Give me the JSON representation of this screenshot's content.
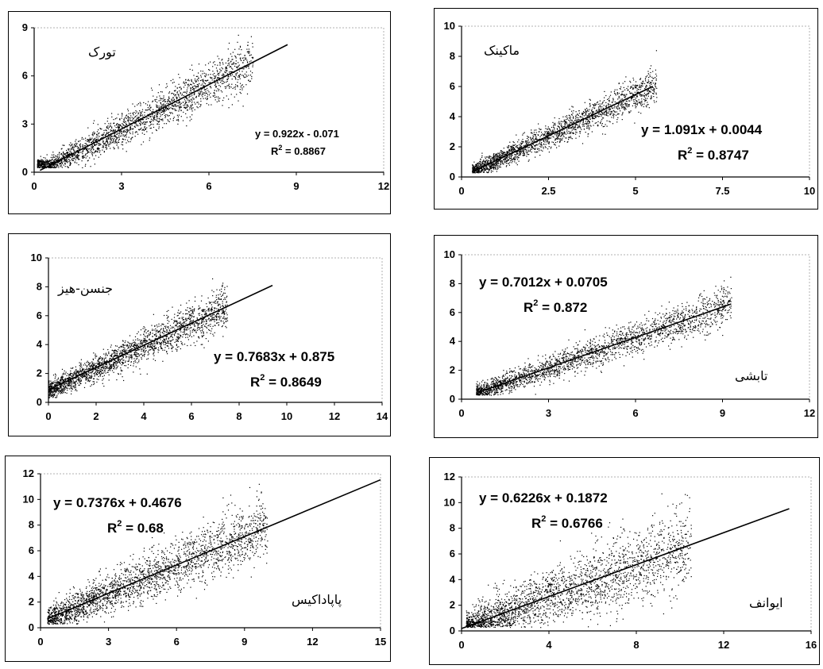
{
  "chart_data": [
    {
      "type": "scatter",
      "title": "تورک",
      "xlim": [
        0,
        12
      ],
      "ylim": [
        0,
        9
      ],
      "xticks": [
        0,
        3,
        6,
        9,
        12
      ],
      "yticks": [
        0,
        3,
        6,
        9
      ],
      "trendline": {
        "slope": 0.922,
        "intercept": -0.071,
        "x_range": [
          0.2,
          8.7
        ]
      },
      "equation": "y = 0.922x - 0.071",
      "r2_prefix": "R",
      "r2_sup": "2",
      "r2_value": "= 0.8867",
      "points": {
        "x_range": [
          0.1,
          7.5
        ],
        "noise": 0.55,
        "count": 2200
      }
    },
    {
      "type": "scatter",
      "title": "ماکینک",
      "xlim": [
        0,
        10
      ],
      "ylim": [
        0,
        10
      ],
      "xticks": [
        0,
        2.5,
        5,
        7.5,
        10
      ],
      "yticks": [
        0,
        2,
        4,
        6,
        8,
        10
      ],
      "trendline": {
        "slope": 1.091,
        "intercept": 0.0044,
        "x_range": [
          0.3,
          5.5
        ]
      },
      "equation": "y = 1.091x + 0.0044",
      "r2_prefix": "R",
      "r2_sup": "2",
      "r2_value": "= 0.8747",
      "points": {
        "x_range": [
          0.3,
          5.6
        ],
        "noise": 0.45,
        "count": 2000
      }
    },
    {
      "type": "scatter",
      "title": "جنسن-هیز",
      "xlim": [
        0,
        14
      ],
      "ylim": [
        0,
        10
      ],
      "xticks": [
        0,
        2,
        4,
        6,
        8,
        10,
        12,
        14
      ],
      "yticks": [
        0,
        2,
        4,
        6,
        8,
        10
      ],
      "trendline": {
        "slope": 0.7683,
        "intercept": 0.875,
        "x_range": [
          0,
          9.4
        ]
      },
      "equation": "y = 0.7683x + 0.875",
      "r2_prefix": "R",
      "r2_sup": "2",
      "r2_value": "= 0.8649",
      "points": {
        "x_range": [
          0,
          7.5
        ],
        "noise": 0.55,
        "count": 2200
      }
    },
    {
      "type": "scatter",
      "title": "تابشی",
      "xlim": [
        0,
        12
      ],
      "ylim": [
        0,
        10
      ],
      "xticks": [
        0,
        3,
        6,
        9,
        12
      ],
      "yticks": [
        0,
        2,
        4,
        6,
        8,
        10
      ],
      "trendline": {
        "slope": 0.7012,
        "intercept": 0.0705,
        "x_range": [
          0.6,
          9.3
        ]
      },
      "equation": "y = 0.7012x + 0.0705",
      "r2_prefix": "R",
      "r2_sup": "2",
      "r2_value": "= 0.872",
      "points": {
        "x_range": [
          0.5,
          9.3
        ],
        "noise": 0.5,
        "count": 2200
      }
    },
    {
      "type": "scatter",
      "title": "پاپاداکیس",
      "xlim": [
        0,
        15
      ],
      "ylim": [
        0,
        12
      ],
      "xticks": [
        0,
        3,
        6,
        9,
        12,
        15
      ],
      "yticks": [
        0,
        2,
        4,
        6,
        8,
        10,
        12
      ],
      "trendline": {
        "slope": 0.7376,
        "intercept": 0.4676,
        "x_range": [
          0.3,
          15
        ]
      },
      "equation": "y = 0.7376x + 0.4676",
      "r2_prefix": "R",
      "r2_sup": "2",
      "r2_value": "= 0.68",
      "points": {
        "x_range": [
          0.3,
          10
        ],
        "noise": 0.9,
        "count": 2400
      }
    },
    {
      "type": "scatter",
      "title": "ایوانف",
      "xlim": [
        0,
        16
      ],
      "ylim": [
        0,
        12
      ],
      "xticks": [
        0,
        4,
        8,
        12,
        16
      ],
      "yticks": [
        0,
        2,
        4,
        6,
        8,
        10,
        12
      ],
      "trendline": {
        "slope": 0.6226,
        "intercept": 0.1872,
        "x_range": [
          0,
          15
        ]
      },
      "equation": "y = 0.6226x + 0.1872",
      "r2_prefix": "R",
      "r2_sup": "2",
      "r2_value": "= 0.6766",
      "points": {
        "x_range": [
          0.2,
          10.5
        ],
        "noise": 1.2,
        "count": 2400
      }
    }
  ]
}
